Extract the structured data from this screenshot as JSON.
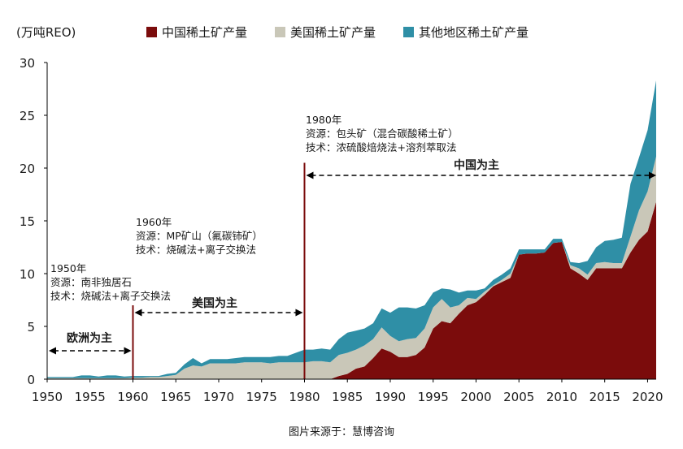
{
  "unit_label": "(万吨REO)",
  "source_note": "图片来源于：慧博咨询",
  "colors": {
    "china": "#7b0c0c",
    "usa": "#c9c7b8",
    "other": "#2f8fa6",
    "marker": "#7b0c0c",
    "axis": "#000000"
  },
  "annotations": [
    {
      "year": "1950年",
      "lines": [
        "资源：南非独居石",
        "技术：烧碱法+离子交换法"
      ]
    },
    {
      "year": "1960年",
      "lines": [
        "资源：MP矿山（氟碳铈矿）",
        "技术：烧碱法+离子交换法"
      ]
    },
    {
      "year": "1980年",
      "lines": [
        "资源：包头矿（混合碳酸稀土矿）",
        "技术：浓硫酸焙烧法+溶剂萃取法"
      ]
    }
  ],
  "eras": [
    "欧洲为主",
    "美国为主",
    "中国为主"
  ],
  "chart_data": {
    "type": "area",
    "stacked": true,
    "ylabel": "(万吨REO)",
    "ylim": [
      0,
      30
    ],
    "yticks": [
      "0",
      "5",
      "10",
      "15",
      "20",
      "25",
      "30"
    ],
    "xlim": [
      1950,
      2021
    ],
    "xticks": [
      "1950",
      "1955",
      "1960",
      "1965",
      "1970",
      "1975",
      "1980",
      "1985",
      "1990",
      "1995",
      "2000",
      "2005",
      "2010",
      "2015",
      "2020"
    ],
    "grid": false,
    "legend_position": "top",
    "x": [
      1950,
      1951,
      1952,
      1953,
      1954,
      1955,
      1956,
      1957,
      1958,
      1959,
      1960,
      1961,
      1962,
      1963,
      1964,
      1965,
      1966,
      1967,
      1968,
      1969,
      1970,
      1971,
      1972,
      1973,
      1974,
      1975,
      1976,
      1977,
      1978,
      1979,
      1980,
      1981,
      1982,
      1983,
      1984,
      1985,
      1986,
      1987,
      1988,
      1989,
      1990,
      1991,
      1992,
      1993,
      1994,
      1995,
      1996,
      1997,
      1998,
      1999,
      2000,
      2001,
      2002,
      2003,
      2004,
      2005,
      2006,
      2007,
      2008,
      2009,
      2010,
      2011,
      2012,
      2013,
      2014,
      2015,
      2016,
      2017,
      2018,
      2019,
      2020,
      2021
    ],
    "series": [
      {
        "name": "中国稀土矿产量",
        "values": [
          0,
          0,
          0,
          0,
          0,
          0,
          0,
          0,
          0,
          0,
          0,
          0,
          0,
          0,
          0,
          0,
          0,
          0,
          0,
          0,
          0,
          0,
          0,
          0,
          0,
          0,
          0,
          0,
          0,
          0,
          0,
          0,
          0,
          0,
          0.3,
          0.5,
          1.0,
          1.2,
          2.0,
          2.9,
          2.6,
          2.1,
          2.1,
          2.3,
          3.0,
          4.8,
          5.5,
          5.3,
          6.2,
          7.0,
          7.3,
          8.0,
          8.8,
          9.2,
          9.6,
          11.8,
          11.9,
          11.9,
          12.0,
          12.9,
          13.0,
          10.5,
          10.0,
          9.4,
          10.5,
          10.5,
          10.5,
          10.5,
          12.0,
          13.2,
          14.0,
          16.8
        ]
      },
      {
        "name": "美国稀土矿产量",
        "values": [
          0.1,
          0.1,
          0.1,
          0.1,
          0.1,
          0.1,
          0.1,
          0.1,
          0.1,
          0.1,
          0.15,
          0.15,
          0.2,
          0.2,
          0.3,
          0.4,
          1.0,
          1.3,
          1.2,
          1.5,
          1.5,
          1.5,
          1.5,
          1.6,
          1.6,
          1.6,
          1.5,
          1.6,
          1.6,
          1.6,
          1.6,
          1.7,
          1.7,
          1.6,
          2.0,
          2.0,
          1.8,
          2.0,
          1.8,
          2.0,
          1.5,
          1.5,
          1.7,
          1.6,
          1.8,
          2.0,
          2.1,
          1.5,
          0.8,
          0.7,
          0.3,
          0.3,
          0.1,
          0.2,
          0.4,
          0,
          0,
          0,
          0,
          0,
          0,
          0.3,
          0.5,
          0.5,
          0.5,
          0.6,
          0.5,
          0.5,
          1.5,
          2.8,
          3.8,
          4.3
        ]
      },
      {
        "name": "其他地区稀土矿产量",
        "values": [
          0.1,
          0.1,
          0.1,
          0.1,
          0.25,
          0.25,
          0.15,
          0.25,
          0.25,
          0.15,
          0.15,
          0.15,
          0.1,
          0.1,
          0.2,
          0.2,
          0.4,
          0.7,
          0.3,
          0.4,
          0.4,
          0.4,
          0.5,
          0.5,
          0.5,
          0.5,
          0.6,
          0.6,
          0.6,
          0.9,
          1.2,
          1.1,
          1.2,
          1.2,
          1.5,
          1.9,
          1.8,
          1.6,
          1.5,
          1.8,
          2.2,
          3.2,
          3.0,
          2.8,
          2.2,
          1.4,
          1.0,
          1.7,
          1.2,
          0.7,
          0.8,
          0.3,
          0.5,
          0.5,
          0.5,
          0.5,
          0.4,
          0.4,
          0.3,
          0.4,
          0.3,
          0.3,
          0.5,
          1.3,
          1.5,
          2.0,
          2.2,
          2.4,
          5.0,
          5.0,
          5.8,
          7.2
        ]
      }
    ]
  }
}
